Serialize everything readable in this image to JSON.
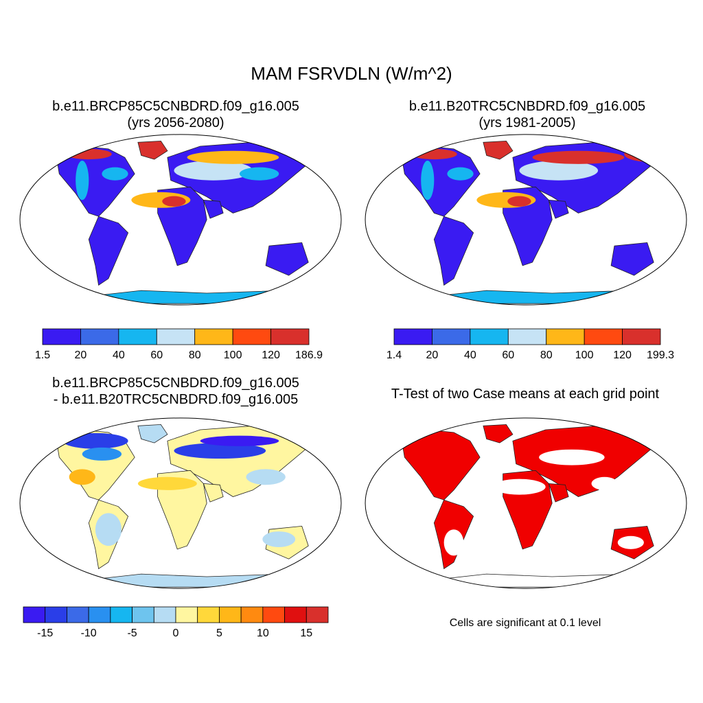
{
  "figure": {
    "title": "MAM FSRVDLN (W/m^2)"
  },
  "panels": {
    "top_left": {
      "title_line1": "b.e11.BRCP85C5CNBDRD.f09_g16.005",
      "title_line2": "(yrs 2056-2080)",
      "colorbar": {
        "colors": [
          "#3a1bf2",
          "#3b6ae8",
          "#16b6f0",
          "#c6e3f5",
          "#ffb718",
          "#ff4a10",
          "#d9302c"
        ],
        "labels": [
          "1.5",
          "20",
          "40",
          "60",
          "80",
          "100",
          "120",
          "186.9"
        ]
      }
    },
    "top_right": {
      "title_line1": "b.e11.B20TRC5CNBDRD.f09_g16.005",
      "title_line2": "(yrs 1981-2005)",
      "colorbar": {
        "colors": [
          "#3a1bf2",
          "#3b6ae8",
          "#16b6f0",
          "#c6e3f5",
          "#ffb718",
          "#ff4a10",
          "#d9302c"
        ],
        "labels": [
          "1.4",
          "20",
          "40",
          "60",
          "80",
          "100",
          "120",
          "199.3"
        ]
      }
    },
    "bottom_left": {
      "title_line1": "b.e11.BRCP85C5CNBDRD.f09_g16.005",
      "title_line2": "- b.e11.B20TRC5CNBDRD.f09_g16.005",
      "colorbar": {
        "colors": [
          "#3a1bf2",
          "#2a3ee8",
          "#3b6ae8",
          "#2990f0",
          "#16b6f0",
          "#6ec4ee",
          "#b6dcf3",
          "#fff6a0",
          "#ffd83a",
          "#ffb718",
          "#ff8a10",
          "#ff4a10",
          "#e01010",
          "#d9302c"
        ],
        "labels": [
          "-15",
          "-10",
          "-5",
          "0",
          "5",
          "10",
          "15"
        ]
      }
    },
    "bottom_right": {
      "title": "T-Test of two Case means at each grid point",
      "note": "Cells are significant at 0.1 level",
      "significance_color": "#f00000"
    }
  }
}
